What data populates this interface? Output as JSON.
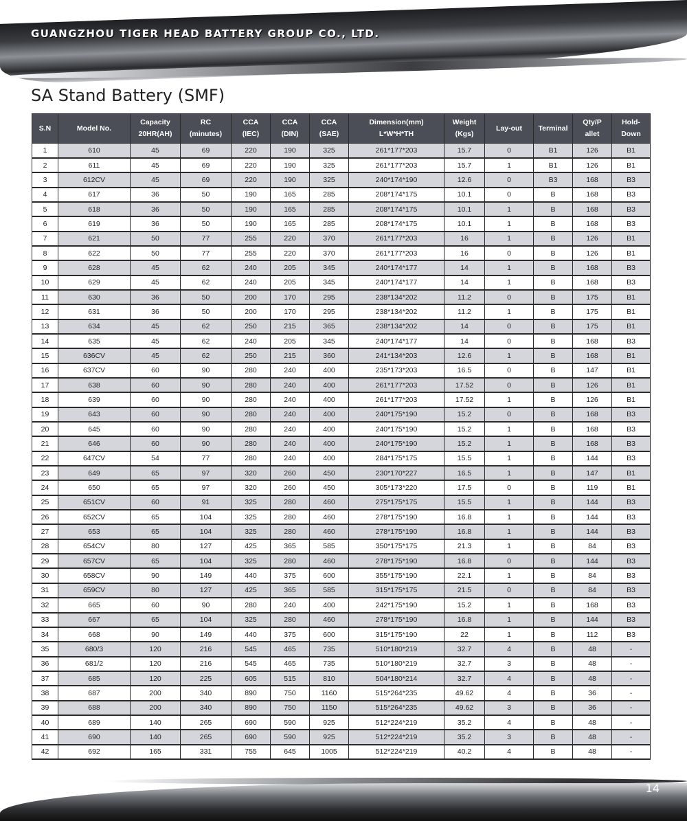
{
  "header": {
    "company": "GUANGZHOU TIGER HEAD BATTERY GROUP CO., LTD."
  },
  "title": "SA Stand Battery (SMF)",
  "table": {
    "headers": [
      [
        "S.N",
        ""
      ],
      [
        "Model No.",
        ""
      ],
      [
        "Capacity",
        "20HR(AH)"
      ],
      [
        "RC",
        "(minutes)"
      ],
      [
        "CCA",
        "(IEC)"
      ],
      [
        "CCA",
        "(DIN)"
      ],
      [
        "CCA",
        "(SAE)"
      ],
      [
        "Dimension(mm)",
        "L*W*H*TH"
      ],
      [
        "Weight",
        "(Kgs)"
      ],
      [
        "Lay-out",
        ""
      ],
      [
        "Terminal",
        ""
      ],
      [
        "Qty/P",
        "allet"
      ],
      [
        "Hold-",
        "Down"
      ]
    ],
    "rows": [
      [
        "1",
        "610",
        "45",
        "69",
        "220",
        "190",
        "325",
        "261*177*203",
        "15.7",
        "0",
        "B1",
        "126",
        "B1"
      ],
      [
        "2",
        "611",
        "45",
        "69",
        "220",
        "190",
        "325",
        "261*177*203",
        "15.7",
        "1",
        "B1",
        "126",
        "B1"
      ],
      [
        "3",
        "612CV",
        "45",
        "69",
        "220",
        "190",
        "325",
        "240*174*190",
        "12.6",
        "0",
        "B3",
        "168",
        "B3"
      ],
      [
        "4",
        "617",
        "36",
        "50",
        "190",
        "165",
        "285",
        "208*174*175",
        "10.1",
        "0",
        "B",
        "168",
        "B3"
      ],
      [
        "5",
        "618",
        "36",
        "50",
        "190",
        "165",
        "285",
        "208*174*175",
        "10.1",
        "1",
        "B",
        "168",
        "B3"
      ],
      [
        "6",
        "619",
        "36",
        "50",
        "190",
        "165",
        "285",
        "208*174*175",
        "10.1",
        "1",
        "B",
        "168",
        "B3"
      ],
      [
        "7",
        "621",
        "50",
        "77",
        "255",
        "220",
        "370",
        "261*177*203",
        "16",
        "1",
        "B",
        "126",
        "B1"
      ],
      [
        "8",
        "622",
        "50",
        "77",
        "255",
        "220",
        "370",
        "261*177*203",
        "16",
        "0",
        "B",
        "126",
        "B1"
      ],
      [
        "9",
        "628",
        "45",
        "62",
        "240",
        "205",
        "345",
        "240*174*177",
        "14",
        "1",
        "B",
        "168",
        "B3"
      ],
      [
        "10",
        "629",
        "45",
        "62",
        "240",
        "205",
        "345",
        "240*174*177",
        "14",
        "1",
        "B",
        "168",
        "B3"
      ],
      [
        "11",
        "630",
        "36",
        "50",
        "200",
        "170",
        "295",
        "238*134*202",
        "11.2",
        "0",
        "B",
        "175",
        "B1"
      ],
      [
        "12",
        "631",
        "36",
        "50",
        "200",
        "170",
        "295",
        "238*134*202",
        "11.2",
        "1",
        "B",
        "175",
        "B1"
      ],
      [
        "13",
        "634",
        "45",
        "62",
        "250",
        "215",
        "365",
        "238*134*202",
        "14",
        "0",
        "B",
        "175",
        "B1"
      ],
      [
        "14",
        "635",
        "45",
        "62",
        "240",
        "205",
        "345",
        "240*174*177",
        "14",
        "0",
        "B",
        "168",
        "B3"
      ],
      [
        "15",
        "636CV",
        "45",
        "62",
        "250",
        "215",
        "360",
        "241*134*203",
        "12.6",
        "1",
        "B",
        "168",
        "B1"
      ],
      [
        "16",
        "637CV",
        "60",
        "90",
        "280",
        "240",
        "400",
        "235*173*203",
        "16.5",
        "0",
        "B",
        "147",
        "B1"
      ],
      [
        "17",
        "638",
        "60",
        "90",
        "280",
        "240",
        "400",
        "261*177*203",
        "17.52",
        "0",
        "B",
        "126",
        "B1"
      ],
      [
        "18",
        "639",
        "60",
        "90",
        "280",
        "240",
        "400",
        "261*177*203",
        "17.52",
        "1",
        "B",
        "126",
        "B1"
      ],
      [
        "19",
        "643",
        "60",
        "90",
        "280",
        "240",
        "400",
        "240*175*190",
        "15.2",
        "0",
        "B",
        "168",
        "B3"
      ],
      [
        "20",
        "645",
        "60",
        "90",
        "280",
        "240",
        "400",
        "240*175*190",
        "15.2",
        "1",
        "B",
        "168",
        "B3"
      ],
      [
        "21",
        "646",
        "60",
        "90",
        "280",
        "240",
        "400",
        "240*175*190",
        "15.2",
        "1",
        "B",
        "168",
        "B3"
      ],
      [
        "22",
        "647CV",
        "54",
        "77",
        "280",
        "240",
        "400",
        "284*175*175",
        "15.5",
        "1",
        "B",
        "144",
        "B3"
      ],
      [
        "23",
        "649",
        "65",
        "97",
        "320",
        "260",
        "450",
        "230*170*227",
        "16.5",
        "1",
        "B",
        "147",
        "B1"
      ],
      [
        "24",
        "650",
        "65",
        "97",
        "320",
        "260",
        "450",
        "305*173*220",
        "17.5",
        "0",
        "B",
        "119",
        "B1"
      ],
      [
        "25",
        "651CV",
        "60",
        "91",
        "325",
        "280",
        "460",
        "275*175*175",
        "15.5",
        "1",
        "B",
        "144",
        "B3"
      ],
      [
        "26",
        "652CV",
        "65",
        "104",
        "325",
        "280",
        "460",
        "278*175*190",
        "16.8",
        "1",
        "B",
        "144",
        "B3"
      ],
      [
        "27",
        "653",
        "65",
        "104",
        "325",
        "280",
        "460",
        "278*175*190",
        "16.8",
        "1",
        "B",
        "144",
        "B3"
      ],
      [
        "28",
        "654CV",
        "80",
        "127",
        "425",
        "365",
        "585",
        "350*175*175",
        "21.3",
        "1",
        "B",
        "84",
        "B3"
      ],
      [
        "29",
        "657CV",
        "65",
        "104",
        "325",
        "280",
        "460",
        "278*175*190",
        "16.8",
        "0",
        "B",
        "144",
        "B3"
      ],
      [
        "30",
        "658CV",
        "90",
        "149",
        "440",
        "375",
        "600",
        "355*175*190",
        "22.1",
        "1",
        "B",
        "84",
        "B3"
      ],
      [
        "31",
        "659CV",
        "80",
        "127",
        "425",
        "365",
        "585",
        "315*175*175",
        "21.5",
        "0",
        "B",
        "84",
        "B3"
      ],
      [
        "32",
        "665",
        "60",
        "90",
        "280",
        "240",
        "400",
        "242*175*190",
        "15.2",
        "1",
        "B",
        "168",
        "B3"
      ],
      [
        "33",
        "667",
        "65",
        "104",
        "325",
        "280",
        "460",
        "278*175*190",
        "16.8",
        "1",
        "B",
        "144",
        "B3"
      ],
      [
        "34",
        "668",
        "90",
        "149",
        "440",
        "375",
        "600",
        "315*175*190",
        "22",
        "1",
        "B",
        "112",
        "B3"
      ],
      [
        "35",
        "680/3",
        "120",
        "216",
        "545",
        "465",
        "735",
        "510*180*219",
        "32.7",
        "4",
        "B",
        "48",
        "-"
      ],
      [
        "36",
        "681/2",
        "120",
        "216",
        "545",
        "465",
        "735",
        "510*180*219",
        "32.7",
        "3",
        "B",
        "48",
        "-"
      ],
      [
        "37",
        "685",
        "120",
        "225",
        "605",
        "515",
        "810",
        "504*180*214",
        "32.7",
        "4",
        "B",
        "48",
        "-"
      ],
      [
        "38",
        "687",
        "200",
        "340",
        "890",
        "750",
        "1160",
        "515*264*235",
        "49.62",
        "4",
        "B",
        "36",
        "-"
      ],
      [
        "39",
        "688",
        "200",
        "340",
        "890",
        "750",
        "1150",
        "515*264*235",
        "49.62",
        "3",
        "B",
        "36",
        "-"
      ],
      [
        "40",
        "689",
        "140",
        "265",
        "690",
        "590",
        "925",
        "512*224*219",
        "35.2",
        "4",
        "B",
        "48",
        "-"
      ],
      [
        "41",
        "690",
        "140",
        "265",
        "690",
        "590",
        "925",
        "512*224*219",
        "35.2",
        "3",
        "B",
        "48",
        "-"
      ],
      [
        "42",
        "692",
        "165",
        "331",
        "755",
        "645",
        "1005",
        "512*224*219",
        "40.2",
        "4",
        "B",
        "48",
        "-"
      ]
    ]
  },
  "footer": {
    "page_number": "14"
  }
}
